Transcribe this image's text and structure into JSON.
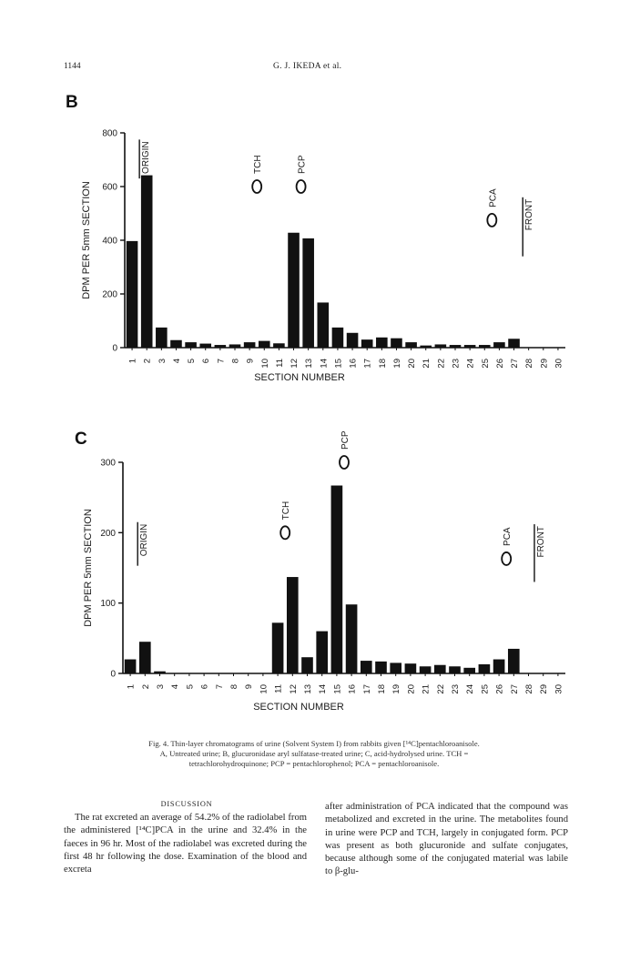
{
  "header": {
    "page_number": "1144",
    "running_head": "G. J. IKEDA et al."
  },
  "panels": {
    "b_label": "B",
    "c_label": "C"
  },
  "chart_data": [
    {
      "id": "B",
      "type": "bar",
      "title": "",
      "xlabel": "SECTION NUMBER",
      "ylabel": "DPM PER 5mm SECTION",
      "ylim": [
        0,
        800
      ],
      "yticks": [
        0,
        200,
        400,
        600,
        800
      ],
      "categories": [
        "1",
        "2",
        "3",
        "4",
        "5",
        "6",
        "7",
        "8",
        "9",
        "10",
        "11",
        "12",
        "13",
        "14",
        "15",
        "16",
        "17",
        "18",
        "19",
        "20",
        "21",
        "22",
        "23",
        "24",
        "25",
        "26",
        "27",
        "28",
        "29",
        "30"
      ],
      "values": [
        397,
        642,
        75,
        28,
        20,
        15,
        10,
        12,
        20,
        25,
        16,
        428,
        407,
        168,
        75,
        55,
        30,
        38,
        35,
        20,
        8,
        12,
        10,
        10,
        10,
        20,
        33,
        0,
        0,
        0
      ],
      "annotations": [
        {
          "label": "ORIGIN",
          "type": "line",
          "x_section": 1.5,
          "y_top": 775,
          "y_bottom": 630
        },
        {
          "label": "TCH",
          "type": "circle",
          "x_section": 9.5,
          "y_circle": 600
        },
        {
          "label": "PCP",
          "type": "circle",
          "x_section": 12.5,
          "y_circle": 600
        },
        {
          "label": "PCA",
          "type": "circle",
          "x_section": 25.5,
          "y_circle": 475
        },
        {
          "label": "FRONT",
          "type": "line",
          "x_section": 27.6,
          "y_top": 560,
          "y_bottom": 340
        }
      ]
    },
    {
      "id": "C",
      "type": "bar",
      "title": "",
      "xlabel": "SECTION NUMBER",
      "ylabel": "DPM PER 5mm SECTION",
      "ylim": [
        0,
        300
      ],
      "yticks": [
        0,
        100,
        200,
        300
      ],
      "categories": [
        "1",
        "2",
        "3",
        "4",
        "5",
        "6",
        "7",
        "8",
        "9",
        "10",
        "11",
        "12",
        "13",
        "14",
        "15",
        "16",
        "17",
        "18",
        "19",
        "20",
        "21",
        "22",
        "23",
        "24",
        "25",
        "26",
        "27",
        "28",
        "29",
        "30"
      ],
      "values": [
        20,
        45,
        3,
        0,
        0,
        0,
        0,
        0,
        0,
        0,
        72,
        137,
        23,
        60,
        267,
        98,
        18,
        17,
        15,
        14,
        10,
        12,
        10,
        8,
        13,
        20,
        35,
        0,
        0,
        0
      ],
      "annotations": [
        {
          "label": "ORIGIN",
          "type": "line",
          "x_section": 1.5,
          "y_top": 215,
          "y_bottom": 153
        },
        {
          "label": "TCH",
          "type": "circle",
          "x_section": 11.5,
          "y_circle": 200
        },
        {
          "label": "PCP",
          "type": "circle",
          "x_section": 15.5,
          "y_circle": 300
        },
        {
          "label": "PCA",
          "type": "circle",
          "x_section": 26.5,
          "y_circle": 163
        },
        {
          "label": "FRONT",
          "type": "line",
          "x_section": 28.4,
          "y_top": 212,
          "y_bottom": 130
        }
      ]
    }
  ],
  "caption": {
    "line1": "Fig. 4. Thin-layer chromatograms of urine (Solvent System I) from rabbits given [¹⁴C]pentachloroanisole.",
    "line2": "A, Untreated urine; B, glucuronidase aryl sulfatase-treated urine; C, acid-hydrolysed urine. TCH =",
    "line3": "tetrachlorohydroquinone; PCP = pentachlorophenol; PCA = pentachloroanisole."
  },
  "discussion": {
    "heading": "DISCUSSION",
    "left_text": "The rat excreted an average of 54.2% of the radiolabel from the administered [¹⁴C]PCA in the urine and 32.4% in the faeces in 96 hr. Most of the radiolabel was excreted during the first 48 hr following the dose. Examination of the blood and excreta",
    "right_text": "after administration of PCA indicated that the compound was metabolized and excreted in the urine. The metabolites found in urine were PCP and TCH, largely in conjugated form. PCP was present as both glucuronide and sulfate conjugates, because although some of the conjugated material was labile to β-glu-"
  }
}
